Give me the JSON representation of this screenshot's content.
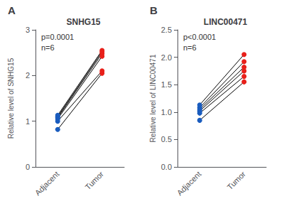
{
  "chart_data": [
    {
      "type": "line",
      "title": "SNHG15",
      "panel_label": "A",
      "ylabel": "Relative level of SNHG15",
      "annotations": [
        "p=0.0001",
        "n=6"
      ],
      "categories": [
        "Adjacent",
        "Tumor"
      ],
      "colors": [
        "#1a5cbe",
        "#e8201a"
      ],
      "color": "#000000",
      "marker": "circle",
      "series": [
        {
          "values": [
            0.82,
            2.05
          ]
        },
        {
          "values": [
            1.0,
            2.1
          ]
        },
        {
          "values": [
            1.05,
            2.42
          ]
        },
        {
          "values": [
            1.08,
            2.48
          ]
        },
        {
          "values": [
            1.1,
            2.52
          ]
        },
        {
          "values": [
            1.13,
            2.55
          ]
        }
      ],
      "ylim": [
        0,
        3.0
      ],
      "yticks": [
        0,
        1,
        2,
        3
      ],
      "grid": false
    },
    {
      "type": "line",
      "title": "LINC00471",
      "panel_label": "B",
      "ylabel": "Relative level of LINC00471",
      "annotations": [
        "p<0.0001",
        "n=6"
      ],
      "categories": [
        "Adjacent",
        "Tumor"
      ],
      "colors": [
        "#1a5cbe",
        "#e8201a"
      ],
      "color": "#000000",
      "marker": "circle",
      "series": [
        {
          "values": [
            0.85,
            1.55
          ]
        },
        {
          "values": [
            0.98,
            1.65
          ]
        },
        {
          "values": [
            1.02,
            1.75
          ]
        },
        {
          "values": [
            1.05,
            1.82
          ]
        },
        {
          "values": [
            1.08,
            1.92
          ]
        },
        {
          "values": [
            1.13,
            2.05
          ]
        }
      ],
      "ylim": [
        0,
        2.5
      ],
      "yticks": [
        {
          "value": 0.0,
          "label": "0.0"
        },
        0.5,
        {
          "value": 1.0,
          "label": "1.0"
        },
        1.5,
        {
          "value": 2.0,
          "label": "2.0"
        },
        2.5
      ],
      "grid": false
    }
  ]
}
